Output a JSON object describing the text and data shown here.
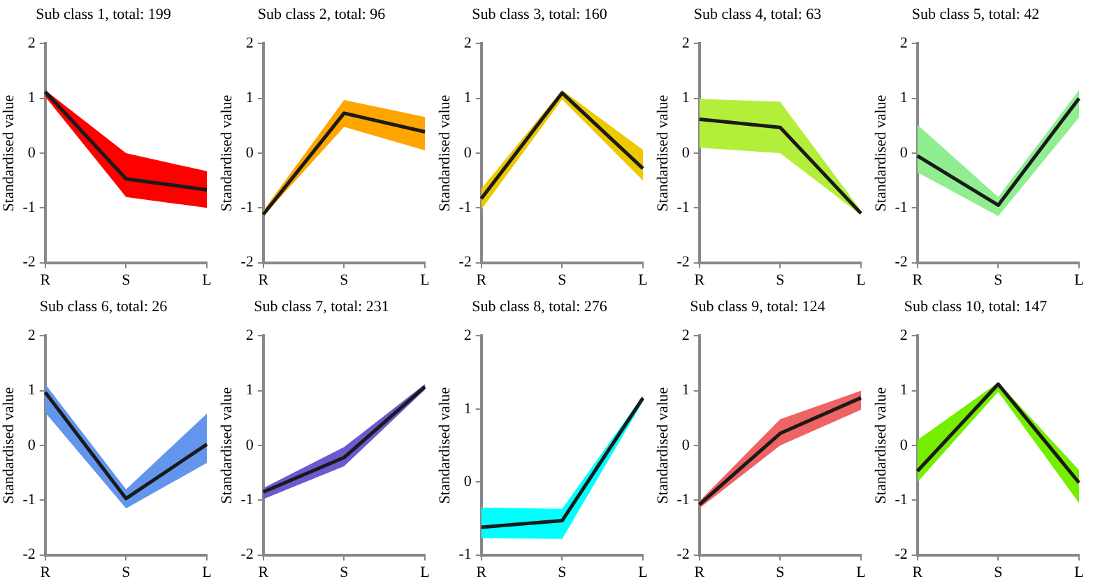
{
  "chart_data": [
    {
      "type": "line",
      "title": "Sub class 1, total: 199",
      "ylabel": "Standardised value",
      "categories": [
        "R",
        "S",
        "L"
      ],
      "ylim": [
        -2,
        2
      ],
      "yticks": [
        -2,
        -1,
        0,
        1,
        2
      ],
      "series": [
        {
          "color": "#1a1a1a",
          "colors": [
            "#ff0000",
            "#ff0000",
            "#ff0000"
          ],
          "values": [
            1.12,
            -0.47,
            -0.67
          ],
          "lower": [
            1.03,
            -0.8,
            -1.0
          ],
          "upper": [
            1.15,
            0.0,
            -0.33
          ]
        }
      ]
    },
    {
      "type": "line",
      "title": "Sub class 2, total: 96",
      "ylabel": "Standardised value",
      "categories": [
        "R",
        "S",
        "L"
      ],
      "ylim": [
        -2,
        2
      ],
      "yticks": [
        -2,
        -1,
        0,
        1,
        2
      ],
      "series": [
        {
          "color": "#1a1a1a",
          "colors": [
            "#ffa500",
            "#ffa500",
            "#ffa500"
          ],
          "values": [
            -1.12,
            0.73,
            0.39
          ],
          "lower": [
            -1.15,
            0.48,
            0.05
          ],
          "upper": [
            -1.05,
            0.97,
            0.66
          ]
        }
      ]
    },
    {
      "type": "line",
      "title": "Sub class 3, total: 160",
      "ylabel": "Standardised value",
      "categories": [
        "R",
        "S",
        "L"
      ],
      "ylim": [
        -2,
        2
      ],
      "yticks": [
        -2,
        -1,
        0,
        1,
        2
      ],
      "series": [
        {
          "color": "#1a1a1a",
          "colors": [
            "#eec900",
            "#eec900",
            "#eec900"
          ],
          "values": [
            -0.83,
            1.1,
            -0.28
          ],
          "lower": [
            -1.03,
            0.98,
            -0.5
          ],
          "upper": [
            -0.65,
            1.15,
            0.06
          ]
        }
      ]
    },
    {
      "type": "line",
      "title": "Sub class 4, total: 63",
      "ylabel": "Standardised value",
      "categories": [
        "R",
        "S",
        "L"
      ],
      "ylim": [
        -2,
        2
      ],
      "yticks": [
        -2,
        -1,
        0,
        1,
        2
      ],
      "series": [
        {
          "color": "#1a1a1a",
          "colors": [
            "#b3ee3a",
            "#b3ee3a",
            "#b3ee3a"
          ],
          "values": [
            0.62,
            0.47,
            -1.1
          ],
          "lower": [
            0.1,
            0.0,
            -1.13
          ],
          "upper": [
            0.99,
            0.94,
            -1.05
          ]
        }
      ]
    },
    {
      "type": "line",
      "title": "Sub class 5, total: 42",
      "ylabel": "Standardised value",
      "categories": [
        "R",
        "S",
        "L"
      ],
      "ylim": [
        -2,
        2
      ],
      "yticks": [
        -2,
        -1,
        0,
        1,
        2
      ],
      "series": [
        {
          "color": "#1a1a1a",
          "colors": [
            "#90ee90",
            "#90ee90",
            "#90ee90"
          ],
          "values": [
            -0.05,
            -0.95,
            1.0
          ],
          "lower": [
            -0.35,
            -1.15,
            0.65
          ],
          "upper": [
            0.52,
            -0.8,
            1.15
          ]
        }
      ]
    },
    {
      "type": "line",
      "title": "Sub class 6, total: 26",
      "ylabel": "Standardised value",
      "categories": [
        "R",
        "S",
        "L"
      ],
      "ylim": [
        -2,
        2
      ],
      "yticks": [
        -2,
        -1,
        0,
        1,
        2
      ],
      "series": [
        {
          "color": "#1a1a1a",
          "colors": [
            "#6495ed",
            "#6495ed",
            "#6495ed"
          ],
          "values": [
            0.97,
            -0.97,
            0.02
          ],
          "lower": [
            0.6,
            -1.15,
            -0.32
          ],
          "upper": [
            1.12,
            -0.8,
            0.58
          ]
        }
      ]
    },
    {
      "type": "line",
      "title": "Sub class 7, total: 231",
      "ylabel": "Standardised value",
      "categories": [
        "R",
        "S",
        "L"
      ],
      "ylim": [
        -2,
        2
      ],
      "yticks": [
        -2,
        -1,
        0,
        1,
        2
      ],
      "series": [
        {
          "color": "#1a1a1a",
          "colors": [
            "#6a5acd",
            "#6a5acd",
            "#6a5acd"
          ],
          "values": [
            -0.85,
            -0.22,
            1.07
          ],
          "lower": [
            -0.98,
            -0.38,
            1.02
          ],
          "upper": [
            -0.78,
            -0.03,
            1.12
          ]
        }
      ]
    },
    {
      "type": "line",
      "title": "Sub class 8, total: 276",
      "ylabel": "Standardised value",
      "categories": [
        "R",
        "S",
        "L"
      ],
      "ylim": [
        -1,
        2
      ],
      "yticks": [
        -1,
        0,
        1,
        2
      ],
      "series": [
        {
          "color": "#1a1a1a",
          "colors": [
            "#00ffff",
            "#00ffff",
            "#00ffff"
          ],
          "values": [
            -0.62,
            -0.53,
            1.15
          ],
          "lower": [
            -0.77,
            -0.78,
            1.1
          ],
          "upper": [
            -0.35,
            -0.37,
            1.18
          ]
        }
      ]
    },
    {
      "type": "line",
      "title": "Sub class 9, total: 124",
      "ylabel": "Standardised value",
      "categories": [
        "R",
        "S",
        "L"
      ],
      "ylim": [
        -2,
        2
      ],
      "yticks": [
        -2,
        -1,
        0,
        1,
        2
      ],
      "series": [
        {
          "color": "#1a1a1a",
          "colors": [
            "#ee6363",
            "#ee6363",
            "#ee6363"
          ],
          "values": [
            -1.08,
            0.22,
            0.87
          ],
          "lower": [
            -1.15,
            0.0,
            0.65
          ],
          "upper": [
            -1.02,
            0.48,
            1.0
          ]
        }
      ]
    },
    {
      "type": "line",
      "title": "Sub class 10, total: 147",
      "ylabel": "Standardised value",
      "categories": [
        "R",
        "S",
        "L"
      ],
      "ylim": [
        -2,
        2
      ],
      "yticks": [
        -2,
        -1,
        0,
        1,
        2
      ],
      "series": [
        {
          "color": "#1a1a1a",
          "colors": [
            "#76ee00",
            "#76ee00",
            "#76ee00"
          ],
          "values": [
            -0.47,
            1.12,
            -0.68
          ],
          "lower": [
            -0.67,
            0.98,
            -1.05
          ],
          "upper": [
            0.1,
            1.15,
            -0.45
          ]
        }
      ]
    }
  ]
}
